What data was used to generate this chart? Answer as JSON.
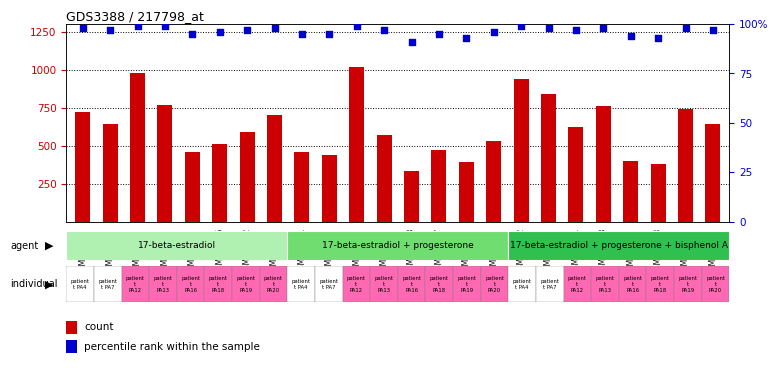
{
  "title": "GDS3388 / 217798_at",
  "samples": [
    "GSM259339",
    "GSM259345",
    "GSM259359",
    "GSM259365",
    "GSM259377",
    "GSM259386",
    "GSM259392",
    "GSM259395",
    "GSM259341",
    "GSM259346",
    "GSM259360",
    "GSM259367",
    "GSM259378",
    "GSM259387",
    "GSM259393",
    "GSM259396",
    "GSM259342",
    "GSM259349",
    "GSM259361",
    "GSM259368",
    "GSM259379",
    "GSM259388",
    "GSM259394",
    "GSM259397"
  ],
  "counts": [
    720,
    640,
    980,
    770,
    460,
    510,
    590,
    700,
    460,
    440,
    1020,
    570,
    330,
    470,
    390,
    530,
    940,
    840,
    620,
    760,
    400,
    380,
    740,
    640
  ],
  "percentile_ranks": [
    98,
    97,
    99,
    99,
    95,
    96,
    97,
    98,
    95,
    95,
    99,
    97,
    91,
    95,
    93,
    96,
    99,
    98,
    97,
    98,
    94,
    93,
    98,
    97
  ],
  "bar_color": "#cc0000",
  "dot_color": "#0000cc",
  "agent_groups": [
    {
      "label": "17-beta-estradiol",
      "start": 0,
      "end": 8,
      "color": "#b0f0b0"
    },
    {
      "label": "17-beta-estradiol + progesterone",
      "start": 8,
      "end": 16,
      "color": "#70dd70"
    },
    {
      "label": "17-beta-estradiol + progesterone + bisphenol A",
      "start": 16,
      "end": 24,
      "color": "#30c050"
    }
  ],
  "pink_indices": [
    2,
    3,
    4,
    5,
    6,
    7,
    10,
    11,
    12,
    13,
    14,
    15,
    18,
    19,
    20,
    21,
    22,
    23
  ],
  "individual_short": [
    "patient\nt PA4",
    "patient\nt PA7",
    "patient\nt\nPA12",
    "patient\nt\nPA13",
    "patient\nt\nPA16",
    "patient\nt\nPA18",
    "patient\nt\nPA19",
    "patient\nt\nPA20",
    "patient\nt PA4",
    "patient\nt PA7",
    "patient\nt\nPA12",
    "patient\nt\nPA13",
    "patient\nt\nPA16",
    "patient\nt\nPA18",
    "patient\nt\nPA19",
    "patient\nt\nPA20",
    "patient\nt PA4",
    "patient\nt PA7",
    "patient\nt\nPA12",
    "patient\nt\nPA13",
    "patient\nt\nPA16",
    "patient\nt\nPA18",
    "patient\nt\nPA19",
    "patient\nt\nPA20"
  ],
  "ylim_left": [
    0,
    1300
  ],
  "ylim_right": [
    0,
    100
  ],
  "yticks_left": [
    250,
    500,
    750,
    1000,
    1250
  ],
  "yticks_right": [
    0,
    25,
    50,
    75,
    100
  ],
  "bar_color_left": "#cc0000",
  "tick_color_right": "#0000cc",
  "background_color": "#ffffff",
  "plot_bg": "#ffffff"
}
